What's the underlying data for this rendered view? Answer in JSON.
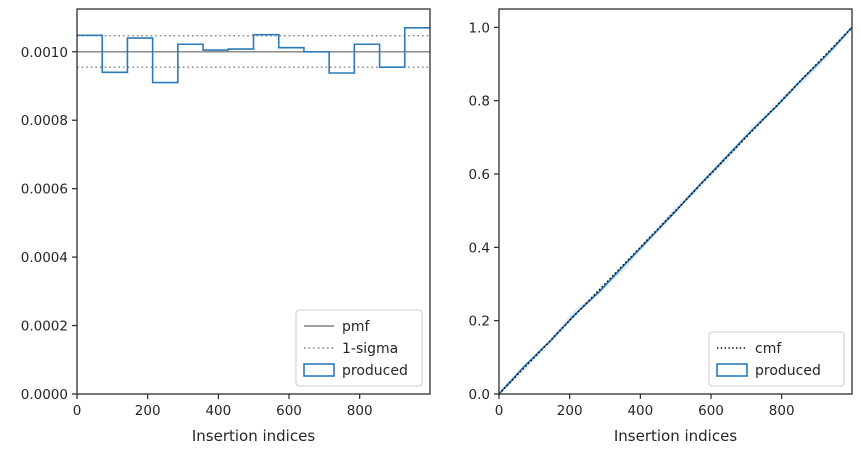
{
  "chart_data": [
    {
      "type": "histogram-step",
      "title": "",
      "xlabel": "Insertion indices",
      "ylabel": "",
      "xlim": [
        0,
        999
      ],
      "ylim": [
        0,
        0.001125
      ],
      "x_ticks": [
        0,
        200,
        400,
        600,
        800
      ],
      "x_tick_labels": [
        "0",
        "200",
        "400",
        "600",
        "800"
      ],
      "y_ticks": [
        0,
        0.0002,
        0.0004,
        0.0006,
        0.0008,
        0.001
      ],
      "y_tick_labels": [
        "0.0000",
        "0.0002",
        "0.0004",
        "0.0006",
        "0.0008",
        "0.0010"
      ],
      "bin_edges": [
        0,
        71.4,
        142.7,
        214.1,
        285.4,
        356.8,
        428.1,
        499.5,
        570.9,
        642.2,
        713.6,
        784.9,
        856.3,
        927.6,
        999
      ],
      "series": [
        {
          "name": "produced",
          "color": "#2b7bba",
          "values": [
            0.001048,
            0.00094,
            0.00104,
            0.00091,
            0.001022,
            0.001005,
            0.001008,
            0.00105,
            0.001012,
            0.001,
            0.000938,
            0.001022,
            0.000955,
            0.00107
          ]
        }
      ],
      "pmf": {
        "name": "pmf",
        "value": 0.001,
        "color": "#808080"
      },
      "sigma": {
        "name": "1-sigma",
        "lower": 0.000955,
        "upper": 0.001047,
        "color": "#808080"
      },
      "legend": {
        "position": "lower-right",
        "entries": [
          "pmf",
          "1-sigma",
          "produced"
        ]
      },
      "grid": false
    },
    {
      "type": "line",
      "title": "",
      "xlabel": "Insertion indices",
      "ylabel": "",
      "xlim": [
        0,
        999
      ],
      "ylim": [
        0,
        1.05
      ],
      "x_ticks": [
        0,
        200,
        400,
        600,
        800
      ],
      "x_tick_labels": [
        "0",
        "200",
        "400",
        "600",
        "800"
      ],
      "y_ticks": [
        0,
        0.2,
        0.4,
        0.6,
        0.8,
        1.0
      ],
      "y_tick_labels": [
        "0.0",
        "0.2",
        "0.4",
        "0.6",
        "0.8",
        "1.0"
      ],
      "series": [
        {
          "name": "cmf",
          "style": "dotted",
          "color": "#000000",
          "x": [
            0,
            999
          ],
          "y": [
            0,
            1.0
          ]
        },
        {
          "name": "produced",
          "style": "solid",
          "color": "#2b7bba",
          "x": [
            0,
            71.4,
            142.7,
            214.1,
            285.4,
            356.8,
            428.1,
            499.5,
            570.9,
            642.2,
            713.6,
            784.9,
            856.3,
            927.6,
            999
          ],
          "y": [
            0,
            0.075,
            0.142,
            0.216,
            0.281,
            0.354,
            0.426,
            0.498,
            0.573,
            0.645,
            0.717,
            0.784,
            0.857,
            0.925,
            1.0
          ]
        }
      ],
      "legend": {
        "position": "lower-right",
        "entries": [
          "cmf",
          "produced"
        ]
      },
      "grid": false
    }
  ]
}
